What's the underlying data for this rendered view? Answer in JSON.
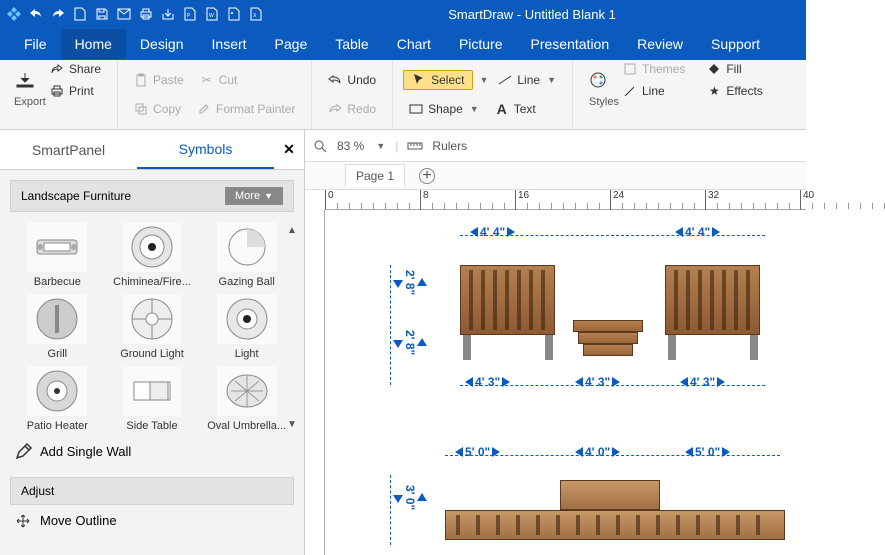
{
  "title": "SmartDraw - Untitled Blank 1",
  "menus": [
    "File",
    "Home",
    "Design",
    "Insert",
    "Page",
    "Table",
    "Chart",
    "Picture",
    "Presentation",
    "Review",
    "Support"
  ],
  "active_menu": 1,
  "ribbon": {
    "export": "Export",
    "share": "Share",
    "print": "Print",
    "paste": "Paste",
    "cut": "Cut",
    "copy": "Copy",
    "format_painter": "Format Painter",
    "undo": "Undo",
    "redo": "Redo",
    "select": "Select",
    "shape": "Shape",
    "line": "Line",
    "text": "Text",
    "styles": "Styles",
    "themes": "Themes",
    "line2": "Line",
    "fill": "Fill",
    "effects": "Effects"
  },
  "smartpanel": {
    "tab1": "SmartPanel",
    "tab2": "Symbols",
    "active_tab": 1,
    "category": "Landscape Furniture",
    "more": "More",
    "symbols": [
      "Barbecue",
      "Chiminea/Fire...",
      "Gazing Ball",
      "Grill",
      "Ground Light",
      "Light",
      "Patio Heater",
      "Side Table",
      "Oval Umbrella..."
    ],
    "add_wall": "Add Single Wall",
    "adjust": "Adjust",
    "move_outline": "Move Outline"
  },
  "canvas": {
    "zoom": "83 %",
    "rulers": "Rulers",
    "page": "Page 1",
    "ruler_major": [
      0,
      8,
      16,
      24,
      32,
      40
    ],
    "dims_h1": [
      "4' 4\"",
      "4' 4\""
    ],
    "dims_v1": [
      "2' 8\"",
      "2' 8\""
    ],
    "dims_h2": [
      "4' 3\"",
      "4' 3\"",
      "4' 3\""
    ],
    "dims_h3": [
      "5' 0\"",
      "4' 0\"",
      "5' 0\""
    ],
    "dims_v2": [
      "3' 0\""
    ]
  },
  "colors": {
    "brand": "#0b5bbf",
    "highlight_bg": "#ffe08a",
    "highlight_border": "#d4a012",
    "wood1": "#b58050",
    "wood2": "#8c5a33",
    "dim": "#0b5bbf"
  }
}
